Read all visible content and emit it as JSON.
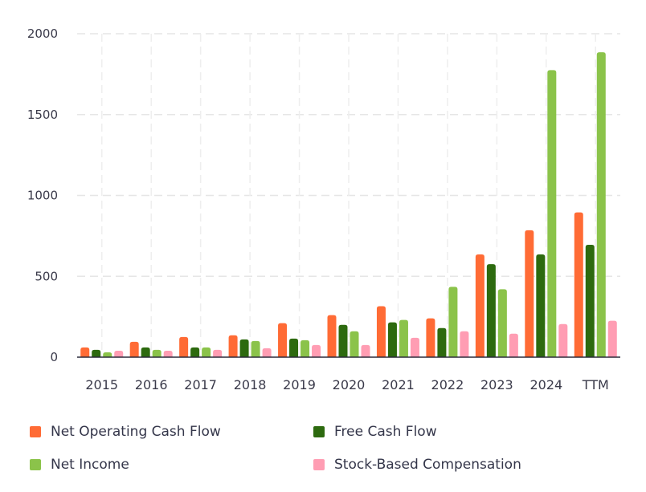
{
  "chart_data": {
    "type": "bar",
    "categories": [
      "2015",
      "2016",
      "2017",
      "2018",
      "2019",
      "2020",
      "2021",
      "2022",
      "2023",
      "2024",
      "TTM"
    ],
    "ylim": [
      0,
      2000
    ],
    "y_ticks": [
      0,
      500,
      1000,
      1500,
      2000
    ],
    "grid": true,
    "legend_position": "bottom",
    "series": [
      {
        "name": "Net Operating Cash Flow",
        "color": "#ff6b35",
        "values": [
          60,
          95,
          125,
          135,
          210,
          260,
          315,
          240,
          635,
          785,
          895
        ]
      },
      {
        "name": "Free Cash Flow",
        "color": "#2d6a0f",
        "values": [
          45,
          60,
          60,
          110,
          115,
          200,
          215,
          180,
          575,
          635,
          695
        ]
      },
      {
        "name": "Net Income",
        "color": "#8bc34a",
        "values": [
          30,
          45,
          60,
          100,
          105,
          160,
          230,
          435,
          420,
          1775,
          1885
        ]
      },
      {
        "name": "Stock-Based Compensation",
        "color": "#ff9db3",
        "values": [
          40,
          40,
          45,
          55,
          75,
          75,
          120,
          160,
          145,
          205,
          225
        ]
      }
    ]
  }
}
